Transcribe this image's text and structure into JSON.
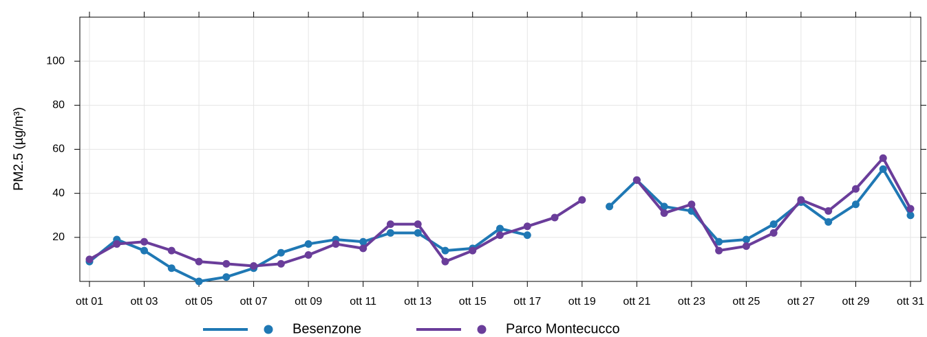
{
  "chart_data": {
    "type": "line",
    "y_label": "PM2.5 (µg/m³)",
    "categories": [
      "ott 01",
      null,
      "ott 03",
      null,
      "ott 05",
      null,
      "ott 07",
      null,
      "ott 09",
      null,
      "ott 11",
      null,
      "ott 13",
      null,
      "ott 15",
      null,
      "ott 17",
      null,
      "ott 19",
      null,
      "ott 21",
      null,
      "ott 23",
      null,
      "ott 25",
      null,
      "ott 27",
      null,
      "ott 29",
      null,
      "ott 31"
    ],
    "series": [
      {
        "name": "Besenzone",
        "color": "#1f78b4",
        "values": [
          9,
          19,
          14,
          6,
          0,
          2,
          6,
          13,
          17,
          19,
          18,
          22,
          22,
          14,
          15,
          24,
          21,
          null,
          null,
          34,
          46,
          34,
          32,
          18,
          19,
          26,
          36,
          27,
          35,
          51,
          30
        ]
      },
      {
        "name": "Parco Montecucco",
        "color": "#6a3d9a",
        "values": [
          10,
          17,
          18,
          14,
          9,
          8,
          7,
          8,
          12,
          17,
          15,
          26,
          26,
          9,
          14,
          21,
          25,
          29,
          37,
          null,
          46,
          31,
          35,
          14,
          16,
          22,
          37,
          32,
          42,
          56,
          33
        ]
      }
    ],
    "ylim": [
      0,
      120
    ],
    "yticks": [
      20,
      40,
      60,
      80,
      100
    ],
    "grid": true
  }
}
